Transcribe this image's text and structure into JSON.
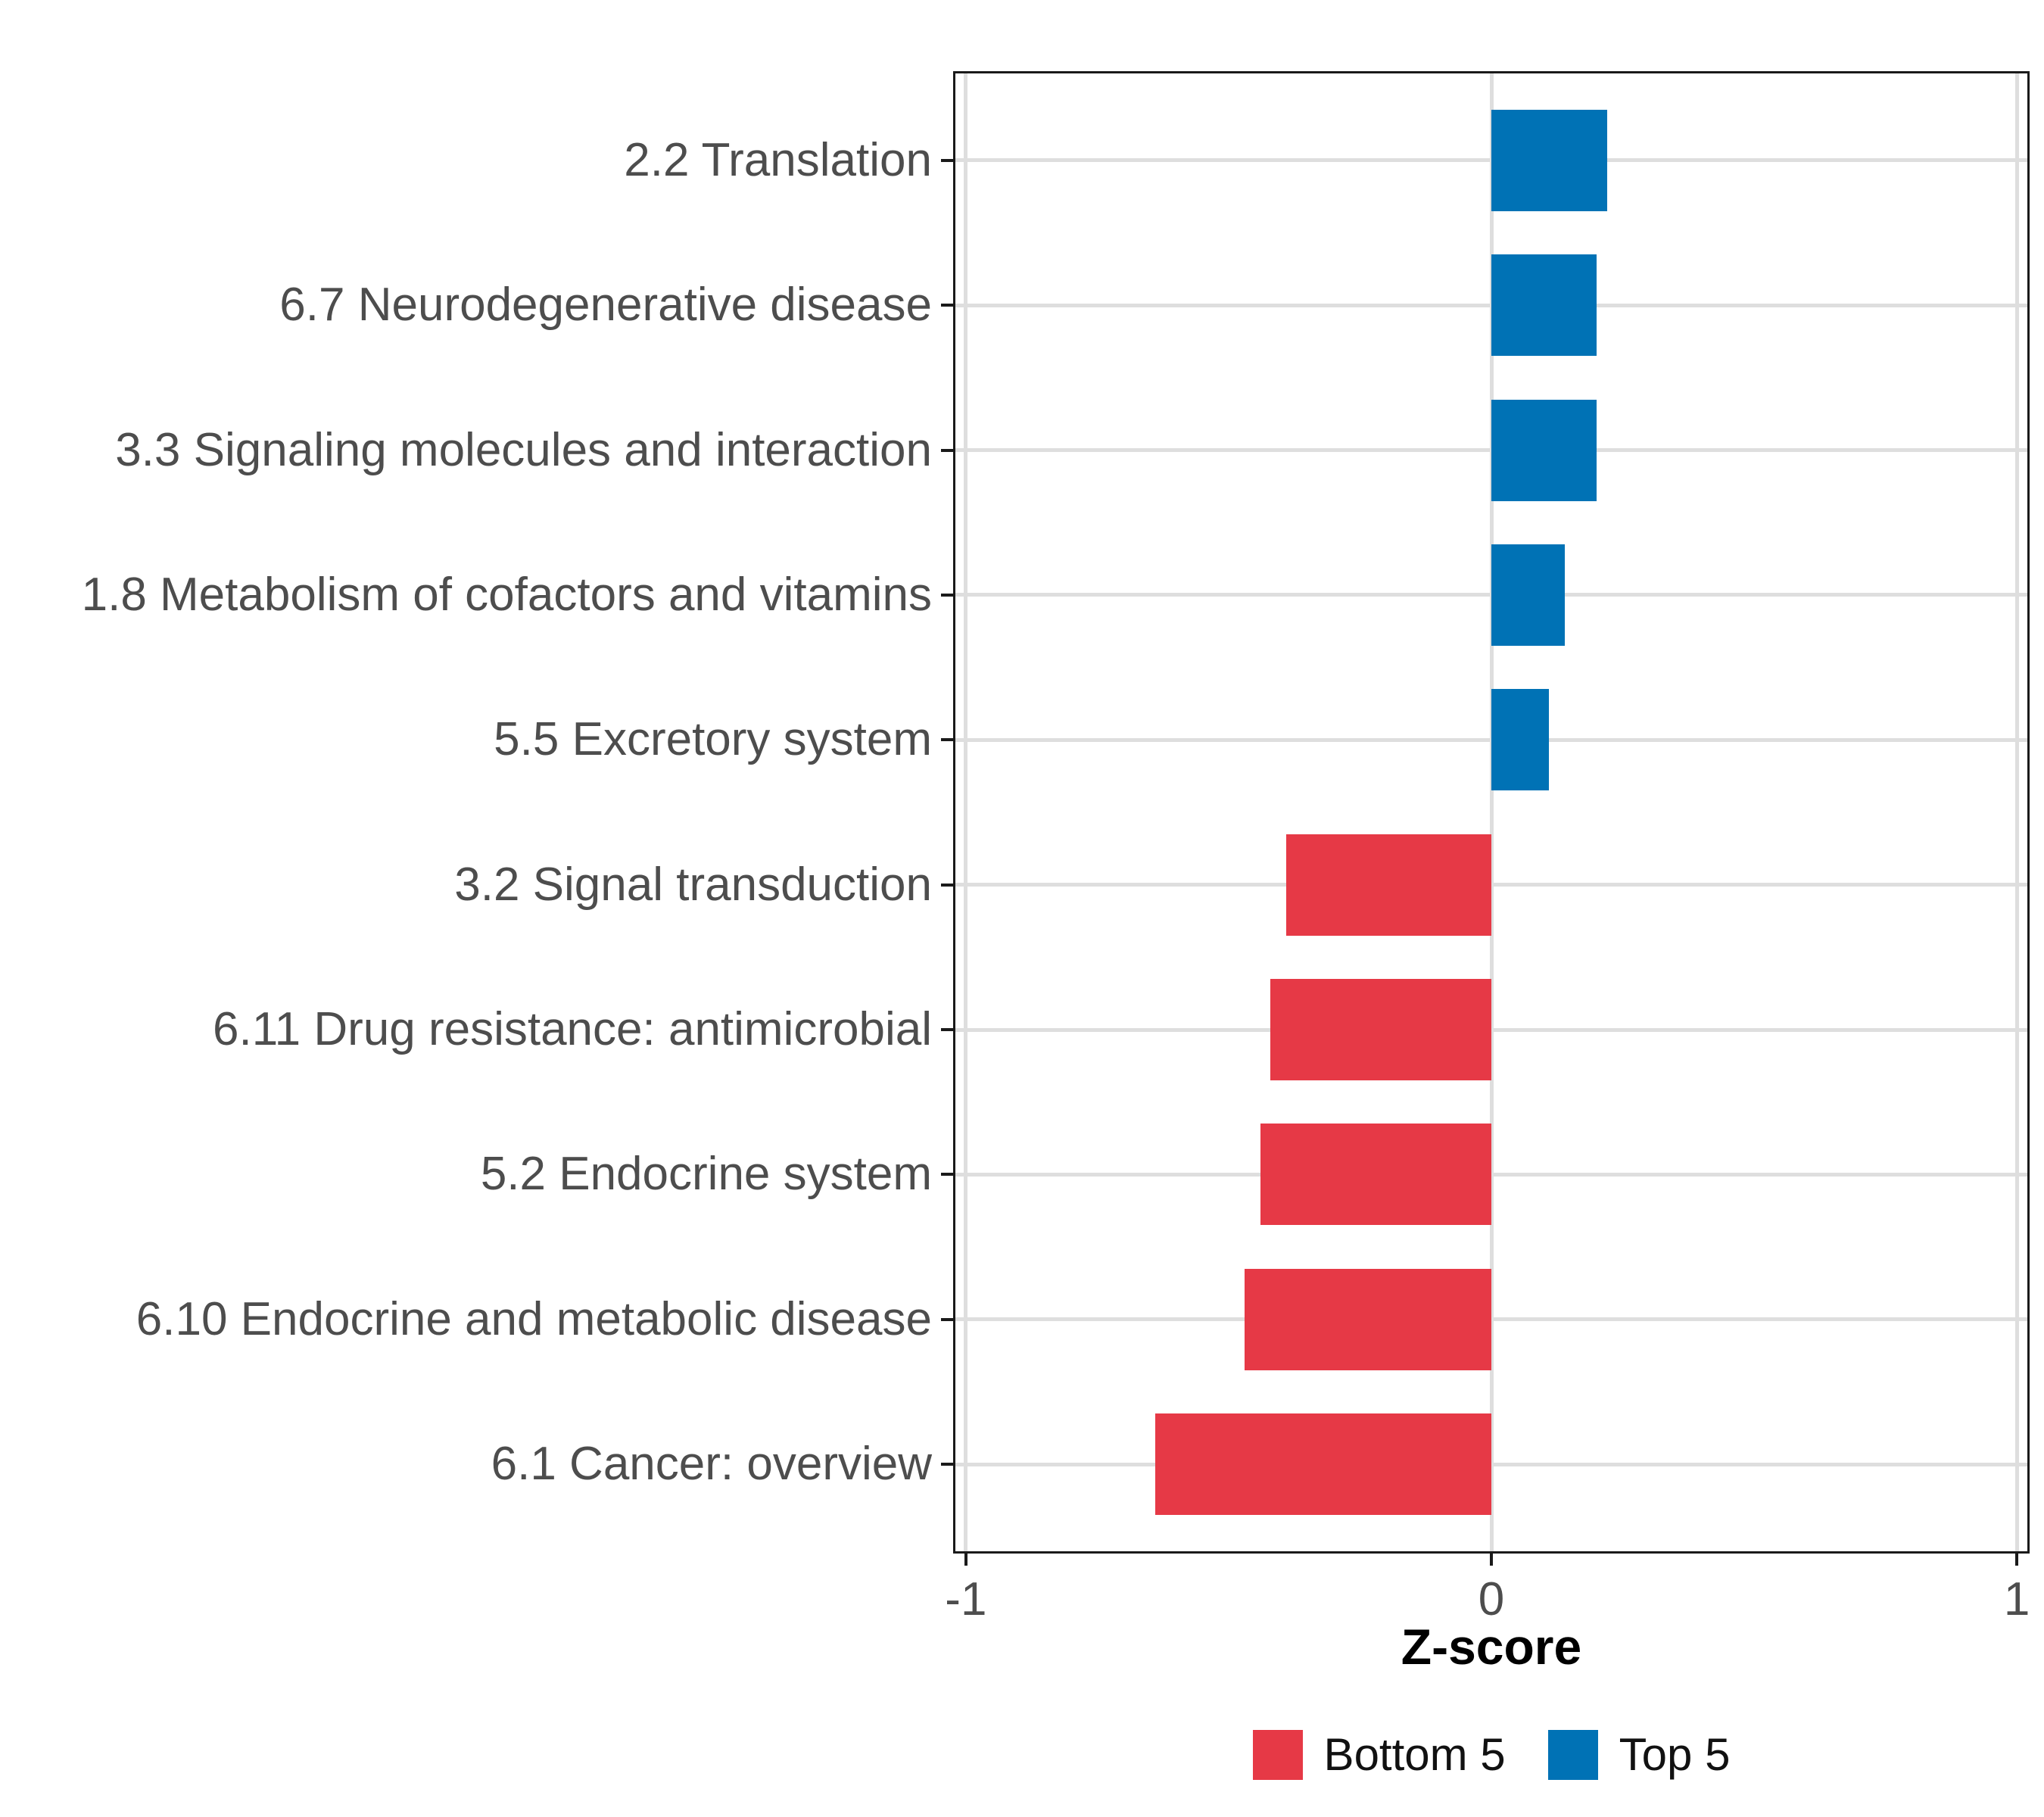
{
  "chart_data": {
    "type": "bar",
    "orientation": "horizontal",
    "title": "",
    "xlabel": "Z-score",
    "ylabel": "",
    "xlim": [
      -1.02,
      1.02
    ],
    "x_ticks": [
      -1,
      0,
      1
    ],
    "x_tick_labels": [
      "-1",
      "0",
      "1"
    ],
    "grid": "major",
    "legend_position": "bottom",
    "categories": [
      "2.2 Translation",
      "6.7 Neurodegenerative disease",
      "3.3 Signaling molecules and interaction",
      "1.8 Metabolism of cofactors and vitamins",
      "5.5 Excretory system",
      "3.2 Signal transduction",
      "6.11 Drug resistance: antimicrobial",
      "5.2 Endocrine system",
      "6.10 Endocrine and metabolic disease",
      "6.1 Cancer: overview"
    ],
    "values": [
      0.22,
      0.2,
      0.2,
      0.14,
      0.11,
      -0.39,
      -0.42,
      -0.44,
      -0.47,
      -0.64
    ],
    "groups": [
      "Top 5",
      "Top 5",
      "Top 5",
      "Top 5",
      "Top 5",
      "Bottom 5",
      "Bottom 5",
      "Bottom 5",
      "Bottom 5",
      "Bottom 5"
    ],
    "legend": [
      {
        "label": "Bottom 5",
        "color": "#E63946"
      },
      {
        "label": "Top 5",
        "color": "#0072B5"
      }
    ]
  }
}
